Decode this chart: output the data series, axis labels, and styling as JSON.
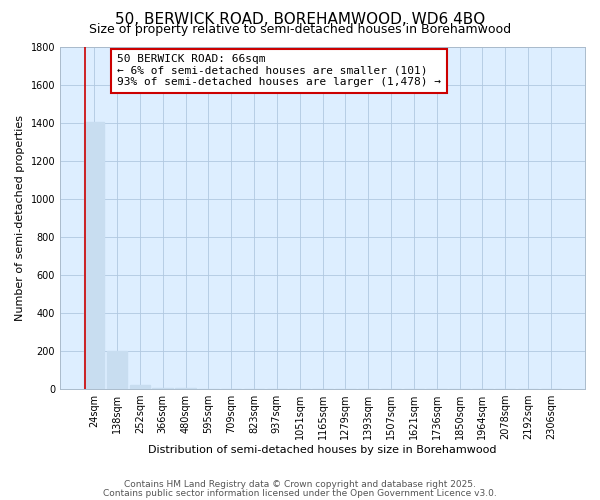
{
  "title": "50, BERWICK ROAD, BOREHAMWOOD, WD6 4BQ",
  "subtitle": "Size of property relative to semi-detached houses in Borehamwood",
  "xlabel": "Distribution of semi-detached houses by size in Borehamwood",
  "ylabel": "Number of semi-detached properties",
  "annotation_lines": [
    "50 BERWICK ROAD: 66sqm",
    "← 6% of semi-detached houses are smaller (101)",
    "93% of semi-detached houses are larger (1,478) →"
  ],
  "footer_line1": "Contains HM Land Registry data © Crown copyright and database right 2025.",
  "footer_line2": "Contains public sector information licensed under the Open Government Licence v3.0.",
  "bar_labels": [
    "24sqm",
    "138sqm",
    "252sqm",
    "366sqm",
    "480sqm",
    "595sqm",
    "709sqm",
    "823sqm",
    "937sqm",
    "1051sqm",
    "1165sqm",
    "1279sqm",
    "1393sqm",
    "1507sqm",
    "1621sqm",
    "1736sqm",
    "1850sqm",
    "1964sqm",
    "2078sqm",
    "2192sqm",
    "2306sqm"
  ],
  "bar_values": [
    1401,
    200,
    20,
    8,
    4,
    2,
    2,
    1,
    1,
    1,
    1,
    1,
    0,
    0,
    0,
    0,
    0,
    0,
    0,
    0,
    0
  ],
  "bar_color": "#c8ddf0",
  "red_line_x": -0.4,
  "ylim": [
    0,
    1800
  ],
  "yticks": [
    0,
    200,
    400,
    600,
    800,
    1000,
    1200,
    1400,
    1600,
    1800
  ],
  "fig_bg_color": "#ffffff",
  "plot_bg_color": "#ddeeff",
  "grid_color": "#b0c8e0",
  "annotation_box_facecolor": "#ffffff",
  "annotation_border_color": "#cc0000",
  "red_line_color": "#cc0000",
  "title_fontsize": 11,
  "subtitle_fontsize": 9,
  "axis_label_fontsize": 8,
  "tick_fontsize": 7,
  "annotation_fontsize": 8,
  "footer_fontsize": 6.5
}
